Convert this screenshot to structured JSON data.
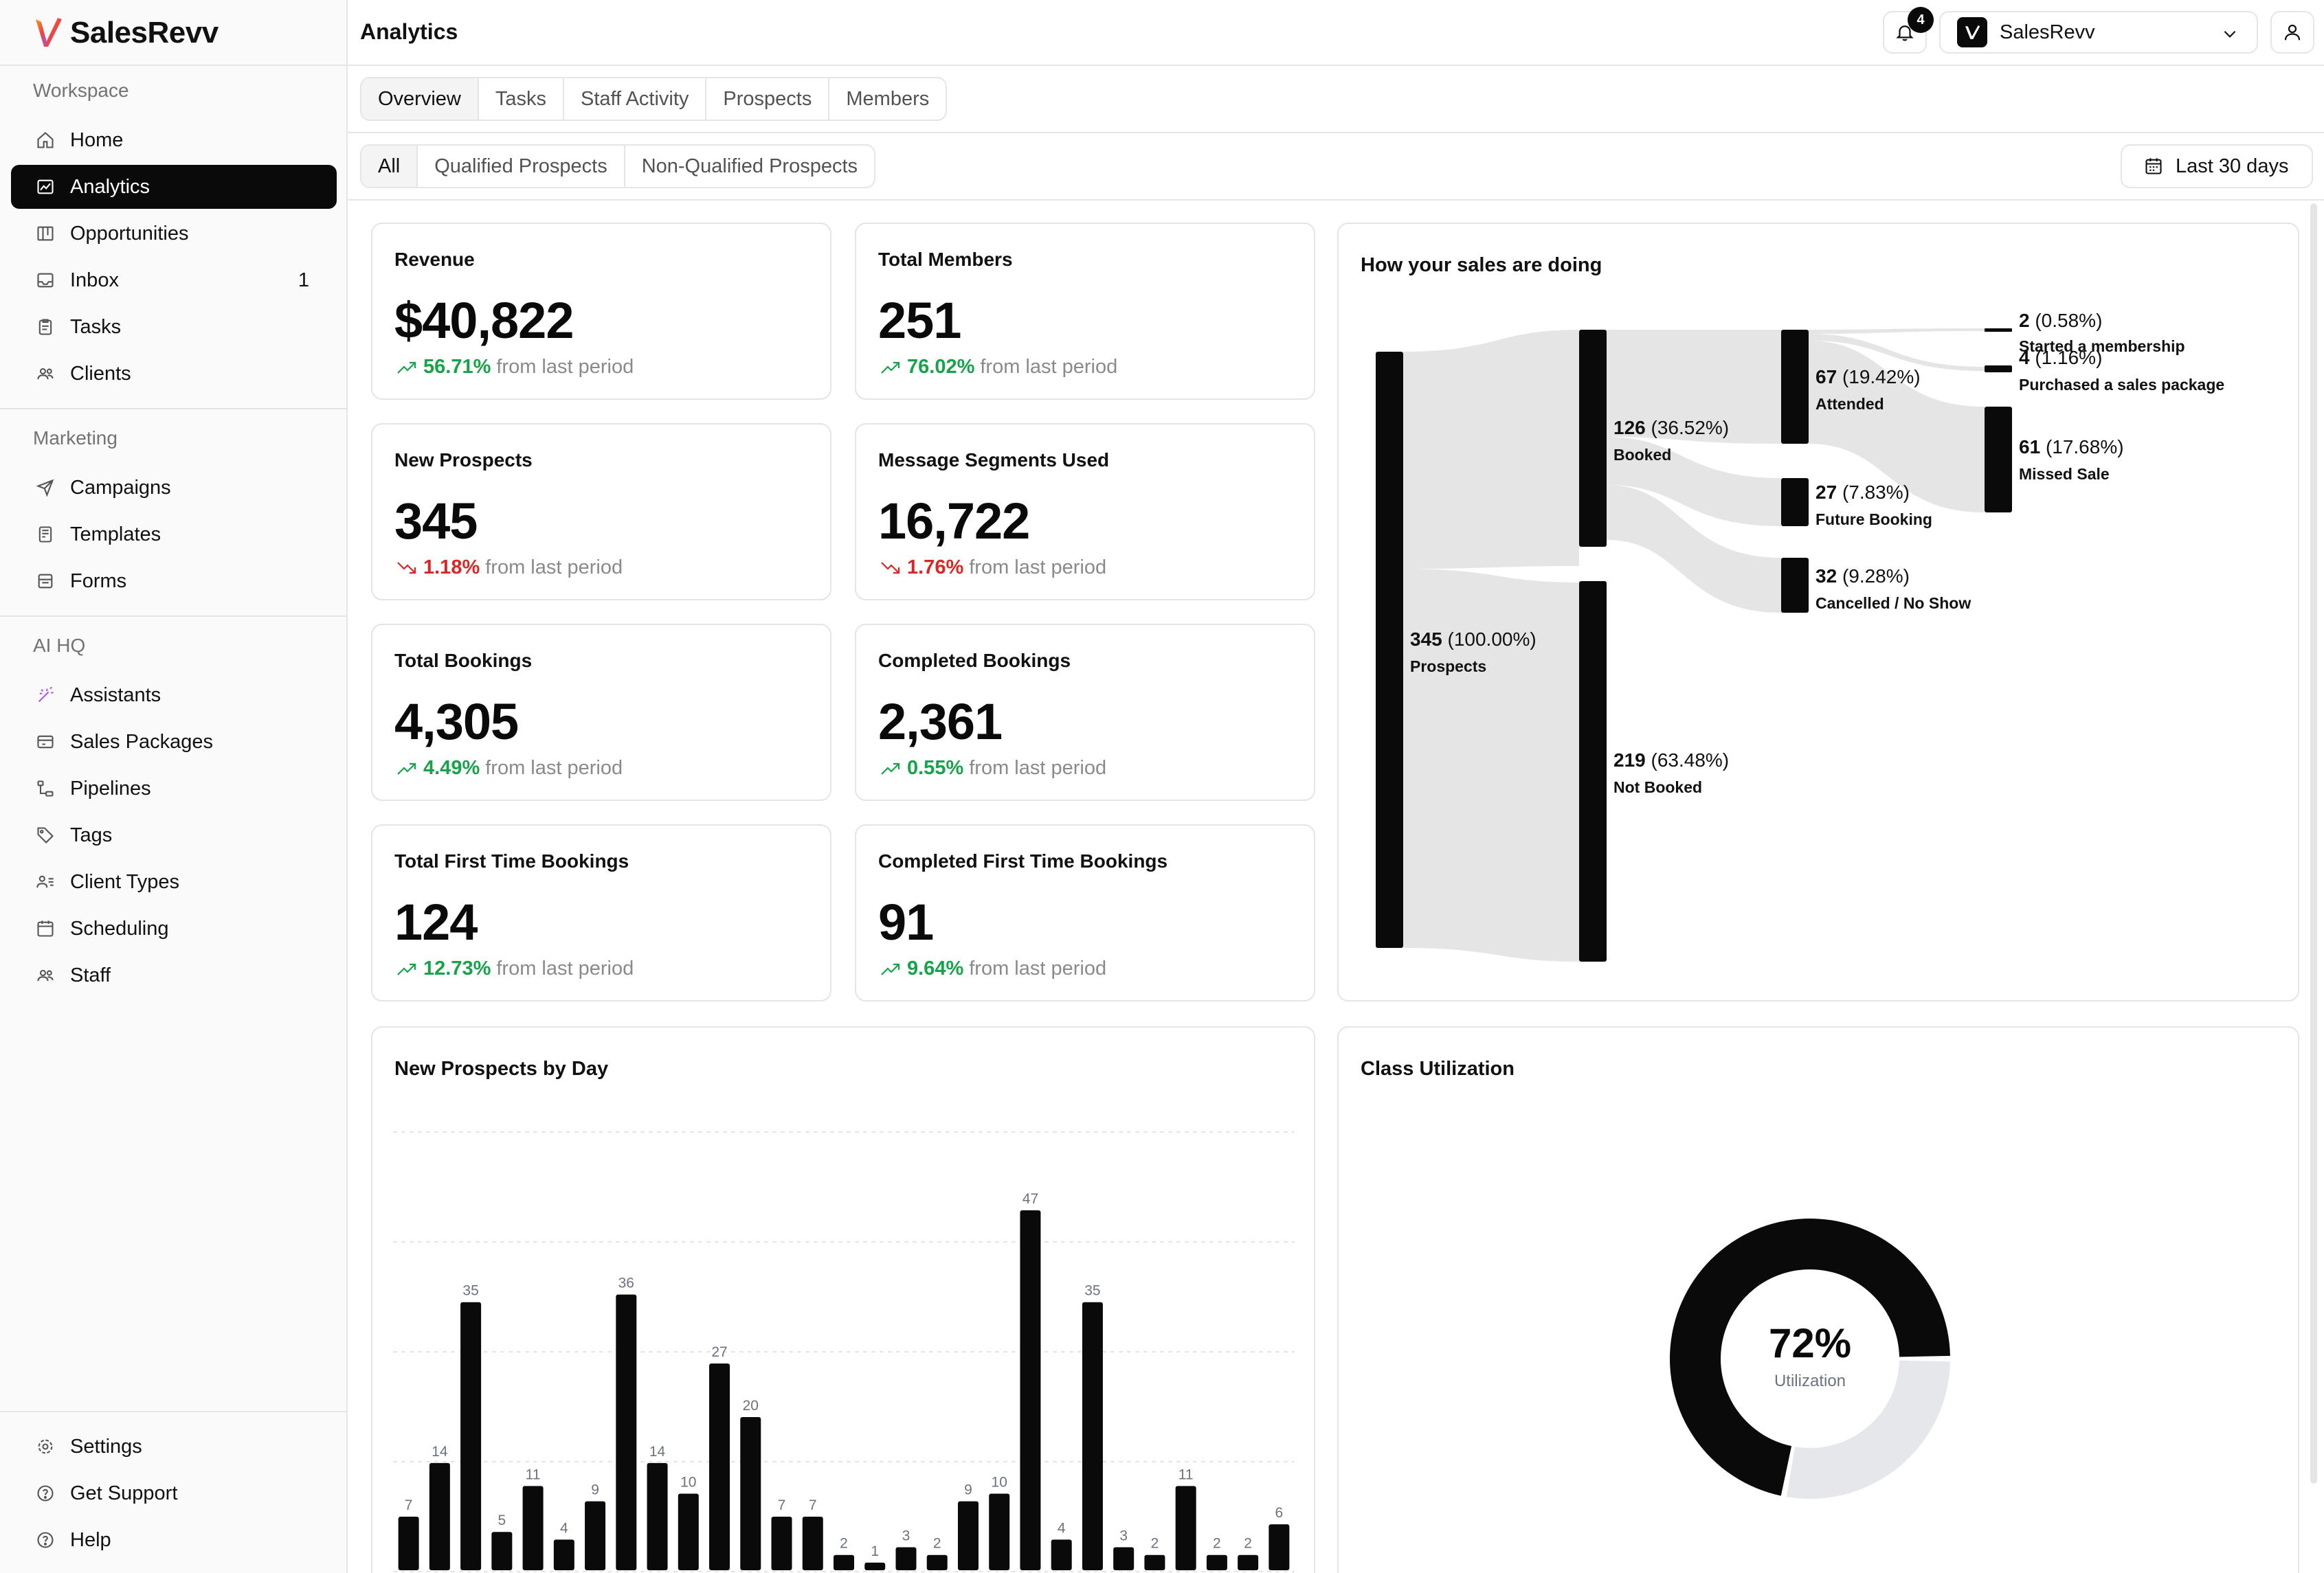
{
  "app": {
    "name": "SalesRevv",
    "page_title": "Analytics"
  },
  "sidebar": {
    "sections": [
      {
        "title": "Workspace",
        "items": [
          {
            "label": "Home",
            "icon": "home-icon"
          },
          {
            "label": "Analytics",
            "icon": "chart-icon",
            "active": true
          },
          {
            "label": "Opportunities",
            "icon": "kanban-icon"
          },
          {
            "label": "Inbox",
            "icon": "inbox-icon",
            "count": "1"
          },
          {
            "label": "Tasks",
            "icon": "clipboard-icon"
          },
          {
            "label": "Clients",
            "icon": "users-icon"
          }
        ]
      },
      {
        "title": "Marketing",
        "items": [
          {
            "label": "Campaigns",
            "icon": "send-icon"
          },
          {
            "label": "Templates",
            "icon": "template-icon"
          },
          {
            "label": "Forms",
            "icon": "form-icon"
          }
        ]
      },
      {
        "title": "AI HQ",
        "items": [
          {
            "label": "Assistants",
            "icon": "wand-icon"
          },
          {
            "label": "Sales Packages",
            "icon": "package-icon"
          },
          {
            "label": "Pipelines",
            "icon": "pipeline-icon"
          },
          {
            "label": "Tags",
            "icon": "tag-icon"
          },
          {
            "label": "Client Types",
            "icon": "user-list-icon"
          },
          {
            "label": "Scheduling",
            "icon": "calendar-icon"
          },
          {
            "label": "Staff",
            "icon": "staff-icon"
          }
        ]
      }
    ],
    "footer": [
      {
        "label": "Settings",
        "icon": "gear-icon"
      },
      {
        "label": "Get Support",
        "icon": "help-circle-icon"
      },
      {
        "label": "Help",
        "icon": "question-icon"
      }
    ]
  },
  "header": {
    "notifications_count": "4",
    "account_name": "SalesRevv"
  },
  "tabs": [
    "Overview",
    "Tasks",
    "Staff Activity",
    "Prospects",
    "Members"
  ],
  "filters": [
    "All",
    "Qualified Prospects",
    "Non-Qualified Prospects"
  ],
  "date_range": "Last 30 days",
  "stats": [
    {
      "title": "Revenue",
      "value": "$40,822",
      "change": "56.71%",
      "direction": "up",
      "suffix": "from last period"
    },
    {
      "title": "Total Members",
      "value": "251",
      "change": "76.02%",
      "direction": "up",
      "suffix": "from last period"
    },
    {
      "title": "New Prospects",
      "value": "345",
      "change": "1.18%",
      "direction": "down",
      "suffix": "from last period"
    },
    {
      "title": "Message Segments Used",
      "value": "16,722",
      "change": "1.76%",
      "direction": "down",
      "suffix": "from last period"
    },
    {
      "title": "Total Bookings",
      "value": "4,305",
      "change": "4.49%",
      "direction": "up",
      "suffix": "from last period"
    },
    {
      "title": "Completed Bookings",
      "value": "2,361",
      "change": "0.55%",
      "direction": "up",
      "suffix": "from last period"
    },
    {
      "title": "Total First Time Bookings",
      "value": "124",
      "change": "12.73%",
      "direction": "up",
      "suffix": "from last period"
    },
    {
      "title": "Completed First Time Bookings",
      "value": "91",
      "change": "9.64%",
      "direction": "up",
      "suffix": "from last period"
    }
  ],
  "sankey": {
    "title": "How your sales are doing",
    "nodes": [
      {
        "value": "345",
        "pct": "(100.00%)",
        "label": "Prospects"
      },
      {
        "value": "126",
        "pct": "(36.52%)",
        "label": "Booked"
      },
      {
        "value": "219",
        "pct": "(63.48%)",
        "label": "Not Booked"
      },
      {
        "value": "67",
        "pct": "(19.42%)",
        "label": "Attended"
      },
      {
        "value": "27",
        "pct": "(7.83%)",
        "label": "Future Booking"
      },
      {
        "value": "32",
        "pct": "(9.28%)",
        "label": "Cancelled / No Show"
      },
      {
        "value": "2",
        "pct": "(0.58%)",
        "label": "Started a membership"
      },
      {
        "value": "4",
        "pct": "(1.16%)",
        "label": "Purchased a sales package"
      },
      {
        "value": "61",
        "pct": "(17.68%)",
        "label": "Missed Sale"
      }
    ]
  },
  "chart_data": [
    {
      "type": "bar",
      "title": "New Prospects by Day",
      "values": [
        7,
        14,
        35,
        5,
        11,
        4,
        9,
        36,
        14,
        10,
        27,
        20,
        7,
        7,
        2,
        1,
        3,
        2,
        9,
        10,
        47,
        4,
        35,
        3,
        2,
        11,
        2,
        2,
        6
      ],
      "ylim": [
        0,
        60
      ],
      "grid": true
    },
    {
      "type": "pie",
      "title": "Class Utilization",
      "center_value": "72%",
      "center_label": "Utilization",
      "values": [
        72,
        28
      ],
      "colors": [
        "#0a0a0a",
        "#e5e7eb"
      ]
    }
  ],
  "colors": {
    "accent": "#0a0a0a",
    "up": "#16a34a",
    "down": "#dc2626",
    "flow": "#e5e5e5"
  }
}
